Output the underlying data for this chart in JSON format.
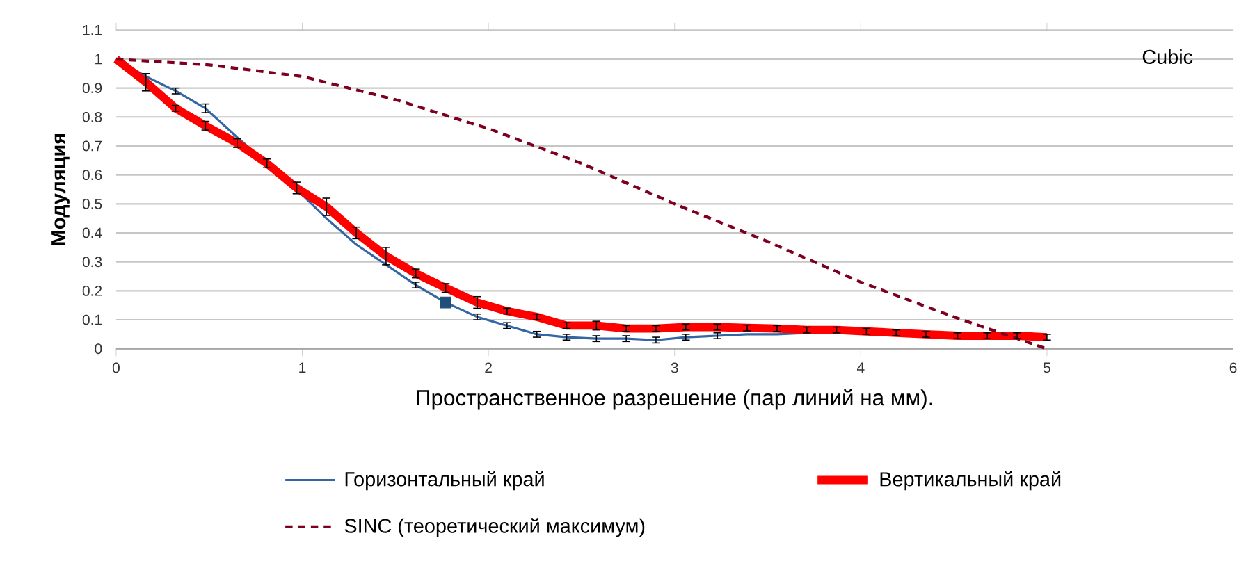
{
  "chart_data": {
    "type": "line",
    "xlabel": "Пространственное разрешение (пар линий на мм).",
    "ylabel": "Модуляция",
    "annotations": [
      "Cubic"
    ],
    "xlim": [
      0,
      6
    ],
    "xticks": [
      0,
      1,
      2,
      3,
      4,
      5,
      6
    ],
    "ylim": [
      0,
      1.1
    ],
    "yticks": [
      0,
      0.1,
      0.2,
      0.3,
      0.4,
      0.5,
      0.6,
      0.7,
      0.8,
      0.9,
      1,
      1.1
    ],
    "grid": "y",
    "legend": "bottom",
    "series": [
      {
        "name": "Горизонтальный край",
        "color": "#3465a4",
        "x": [
          0,
          0.16,
          0.32,
          0.48,
          0.65,
          0.81,
          0.97,
          1.13,
          1.29,
          1.45,
          1.61,
          1.77,
          1.94,
          2.1,
          2.26,
          2.42,
          2.58,
          2.74,
          2.9,
          3.06,
          3.23,
          3.39,
          3.55,
          3.71
        ],
        "values": [
          1,
          0.94,
          0.89,
          0.83,
          0.73,
          0.64,
          0.55,
          0.45,
          0.36,
          0.29,
          0.22,
          0.16,
          0.11,
          0.08,
          0.05,
          0.04,
          0.035,
          0.035,
          0.03,
          0.04,
          0.045,
          0.05,
          0.05,
          0.055
        ],
        "errors": [
          null,
          null,
          0.01,
          0.015,
          null,
          null,
          null,
          null,
          null,
          null,
          0.01,
          null,
          0.01,
          0.01,
          0.01,
          0.01,
          0.01,
          0.01,
          0.01,
          0.01,
          0.01,
          null,
          null,
          null
        ]
      },
      {
        "name": "Вертикальный край",
        "color": "#ff0000",
        "x": [
          0,
          0.16,
          0.32,
          0.48,
          0.65,
          0.81,
          0.97,
          1.13,
          1.29,
          1.45,
          1.61,
          1.77,
          1.94,
          2.1,
          2.26,
          2.42,
          2.58,
          2.74,
          2.9,
          3.06,
          3.23,
          3.39,
          3.55,
          3.71,
          3.87,
          4.03,
          4.19,
          4.35,
          4.52,
          4.68,
          4.84,
          5
        ],
        "values": [
          1,
          0.92,
          0.83,
          0.77,
          0.71,
          0.64,
          0.555,
          0.49,
          0.4,
          0.32,
          0.26,
          0.21,
          0.16,
          0.13,
          0.11,
          0.08,
          0.08,
          0.07,
          0.07,
          0.075,
          0.075,
          0.072,
          0.07,
          0.065,
          0.065,
          0.06,
          0.055,
          0.05,
          0.045,
          0.045,
          0.045,
          0.04
        ],
        "errors": [
          null,
          0.03,
          0.01,
          0.015,
          0.015,
          0.015,
          0.02,
          0.03,
          0.02,
          0.03,
          0.015,
          0.015,
          0.02,
          0.01,
          0.01,
          0.01,
          0.015,
          0.01,
          0.01,
          0.01,
          0.01,
          0.01,
          0.01,
          0.01,
          0.01,
          0.01,
          0.01,
          0.01,
          0.01,
          0.01,
          0.01,
          0.01
        ]
      },
      {
        "name": "SINC (теоретический максимум)",
        "color": "#7e0021",
        "line_style": "dashed",
        "x": [
          0,
          0.5,
          1,
          1.5,
          2,
          2.5,
          3,
          3.5,
          4,
          4.5,
          5
        ],
        "values": [
          1,
          0.98,
          0.94,
          0.86,
          0.76,
          0.64,
          0.5,
          0.37,
          0.23,
          0.11,
          0
        ]
      },
      {
        "type": "scatter",
        "color": "#1f4e79",
        "marker": "square",
        "x": [
          1.77
        ],
        "values": [
          0.16
        ]
      }
    ]
  }
}
